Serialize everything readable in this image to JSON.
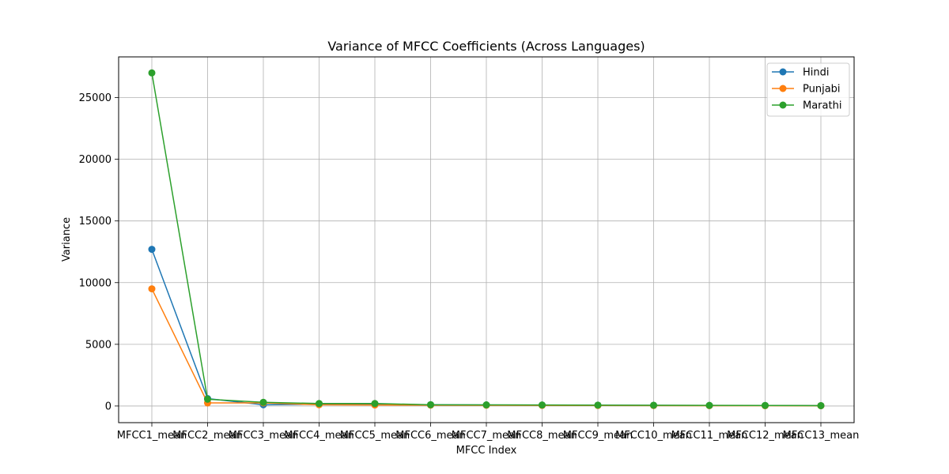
{
  "chart_data": {
    "type": "line",
    "title": "Variance of MFCC Coefficients (Across Languages)",
    "xlabel": "MFCC Index",
    "ylabel": "Variance",
    "categories": [
      "MFCC1_mean",
      "MFCC2_mean",
      "MFCC3_mean",
      "MFCC4_mean",
      "MFCC5_mean",
      "MFCC6_mean",
      "MFCC7_mean",
      "MFCC8_mean",
      "MFCC9_mean",
      "MFCC10_mean",
      "MFCC11_mean",
      "MFCC12_mean",
      "MFCC13_mean"
    ],
    "yticks": [
      0,
      5000,
      10000,
      15000,
      20000,
      25000
    ],
    "ylim": [
      -1350,
      28300
    ],
    "grid": true,
    "legend_position": "top-right",
    "series": [
      {
        "name": "Hindi",
        "color": "#1f77b4",
        "values": [
          12700,
          600,
          100,
          150,
          150,
          100,
          80,
          70,
          60,
          50,
          40,
          40,
          30
        ]
      },
      {
        "name": "Punjabi",
        "color": "#ff7f0e",
        "values": [
          9500,
          250,
          250,
          100,
          80,
          70,
          60,
          50,
          40,
          35,
          30,
          25,
          20
        ]
      },
      {
        "name": "Marathi",
        "color": "#2ca02c",
        "values": [
          27000,
          550,
          300,
          200,
          200,
          100,
          90,
          80,
          70,
          60,
          50,
          45,
          30
        ]
      }
    ]
  }
}
